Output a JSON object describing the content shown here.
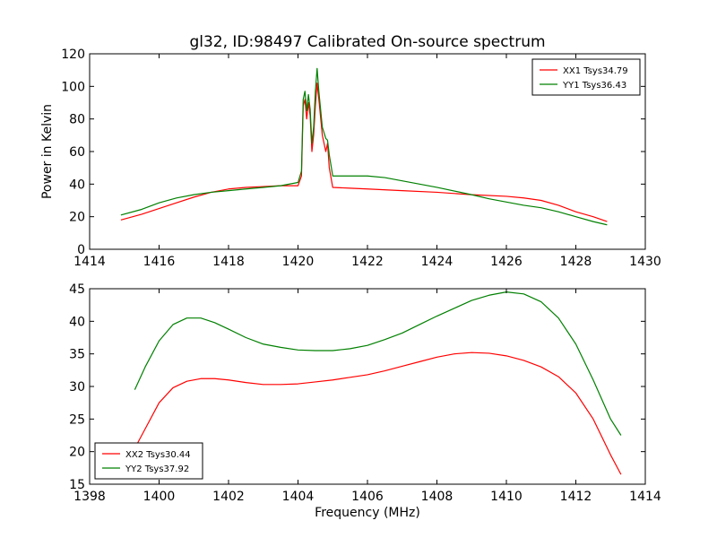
{
  "chart_data": [
    {
      "type": "line",
      "title": "gl32, ID:98497 Calibrated On-source spectrum",
      "xlabel": "",
      "ylabel": "Power in Kelvin",
      "xlim": [
        1414,
        1430
      ],
      "ylim": [
        0,
        120
      ],
      "xticks": [
        "1414",
        "1416",
        "1418",
        "1420",
        "1422",
        "1424",
        "1426",
        "1428",
        "1430"
      ],
      "yticks": [
        "0",
        "20",
        "40",
        "60",
        "80",
        "100",
        "120"
      ],
      "legend_position": "top-right",
      "series": [
        {
          "name": "XX1 Tsys34.79",
          "color": "#ff0000",
          "points": [
            [
              1414.9,
              18
            ],
            [
              1415.5,
              21.5
            ],
            [
              1416,
              25
            ],
            [
              1416.5,
              28.5
            ],
            [
              1417,
              32
            ],
            [
              1417.5,
              35
            ],
            [
              1418,
              37
            ],
            [
              1418.5,
              38
            ],
            [
              1419,
              38.5
            ],
            [
              1419.5,
              39
            ],
            [
              1420,
              39
            ],
            [
              1420.1,
              45
            ],
            [
              1420.15,
              88
            ],
            [
              1420.2,
              92
            ],
            [
              1420.25,
              80
            ],
            [
              1420.3,
              90
            ],
            [
              1420.35,
              82
            ],
            [
              1420.4,
              60
            ],
            [
              1420.45,
              70
            ],
            [
              1420.5,
              88
            ],
            [
              1420.55,
              102
            ],
            [
              1420.6,
              92
            ],
            [
              1420.7,
              70
            ],
            [
              1420.8,
              60
            ],
            [
              1420.85,
              65
            ],
            [
              1420.9,
              50
            ],
            [
              1421,
              38
            ],
            [
              1421.5,
              37.5
            ],
            [
              1422,
              37
            ],
            [
              1423,
              36
            ],
            [
              1424,
              35
            ],
            [
              1425,
              33.5
            ],
            [
              1426,
              32.5
            ],
            [
              1426.5,
              31.5
            ],
            [
              1427,
              30
            ],
            [
              1427.5,
              27
            ],
            [
              1428,
              23
            ],
            [
              1428.5,
              20
            ],
            [
              1428.9,
              17
            ]
          ]
        },
        {
          "name": "YY1 Tsys36.43",
          "color": "#008000",
          "points": [
            [
              1414.9,
              21
            ],
            [
              1415.5,
              24.5
            ],
            [
              1416,
              28.5
            ],
            [
              1416.5,
              31.5
            ],
            [
              1417,
              33.5
            ],
            [
              1417.5,
              35
            ],
            [
              1418,
              36
            ],
            [
              1418.5,
              37
            ],
            [
              1419,
              38
            ],
            [
              1419.5,
              39
            ],
            [
              1420,
              41
            ],
            [
              1420.1,
              48
            ],
            [
              1420.15,
              92
            ],
            [
              1420.2,
              97
            ],
            [
              1420.25,
              85
            ],
            [
              1420.3,
              95
            ],
            [
              1420.35,
              86
            ],
            [
              1420.4,
              65
            ],
            [
              1420.45,
              75
            ],
            [
              1420.5,
              97
            ],
            [
              1420.55,
              111
            ],
            [
              1420.6,
              97
            ],
            [
              1420.7,
              75
            ],
            [
              1420.8,
              68
            ],
            [
              1420.85,
              67
            ],
            [
              1420.9,
              58
            ],
            [
              1421,
              45
            ],
            [
              1421.5,
              45
            ],
            [
              1422,
              45
            ],
            [
              1422.5,
              44
            ],
            [
              1423,
              42
            ],
            [
              1424,
              38
            ],
            [
              1425,
              33.5
            ],
            [
              1425.5,
              31
            ],
            [
              1426,
              29
            ],
            [
              1426.5,
              27
            ],
            [
              1427,
              25.5
            ],
            [
              1427.5,
              23
            ],
            [
              1428,
              20
            ],
            [
              1428.5,
              17
            ],
            [
              1428.9,
              15
            ]
          ]
        }
      ]
    },
    {
      "type": "line",
      "title": "",
      "xlabel": "Frequency (MHz)",
      "ylabel": "",
      "xlim": [
        1398,
        1414
      ],
      "ylim": [
        15,
        45
      ],
      "xticks": [
        "1398",
        "1400",
        "1402",
        "1404",
        "1406",
        "1408",
        "1410",
        "1412",
        "1414"
      ],
      "yticks": [
        "15",
        "20",
        "25",
        "30",
        "35",
        "40",
        "45"
      ],
      "legend_position": "bottom-left",
      "series": [
        {
          "name": "XX2 Tsys30.44",
          "color": "#ff0000",
          "points": [
            [
              1399.3,
              20.5
            ],
            [
              1399.6,
              23.5
            ],
            [
              1400,
              27.5
            ],
            [
              1400.4,
              29.8
            ],
            [
              1400.8,
              30.8
            ],
            [
              1401.2,
              31.2
            ],
            [
              1401.6,
              31.2
            ],
            [
              1402,
              31
            ],
            [
              1402.5,
              30.6
            ],
            [
              1403,
              30.3
            ],
            [
              1403.5,
              30.3
            ],
            [
              1404,
              30.4
            ],
            [
              1404.5,
              30.7
            ],
            [
              1405,
              31
            ],
            [
              1405.5,
              31.4
            ],
            [
              1406,
              31.8
            ],
            [
              1406.5,
              32.4
            ],
            [
              1407,
              33.1
            ],
            [
              1407.5,
              33.8
            ],
            [
              1408,
              34.5
            ],
            [
              1408.5,
              35
            ],
            [
              1409,
              35.2
            ],
            [
              1409.5,
              35.1
            ],
            [
              1410,
              34.7
            ],
            [
              1410.5,
              34
            ],
            [
              1411,
              33
            ],
            [
              1411.5,
              31.5
            ],
            [
              1412,
              29
            ],
            [
              1412.5,
              25
            ],
            [
              1413,
              19.5
            ],
            [
              1413.3,
              16.5
            ]
          ]
        },
        {
          "name": "YY2 Tsys37.92",
          "color": "#008000",
          "points": [
            [
              1399.3,
              29.5
            ],
            [
              1399.6,
              33
            ],
            [
              1400,
              37
            ],
            [
              1400.4,
              39.5
            ],
            [
              1400.8,
              40.5
            ],
            [
              1401.2,
              40.5
            ],
            [
              1401.6,
              39.8
            ],
            [
              1402,
              38.8
            ],
            [
              1402.5,
              37.5
            ],
            [
              1403,
              36.5
            ],
            [
              1403.5,
              36
            ],
            [
              1404,
              35.6
            ],
            [
              1404.5,
              35.5
            ],
            [
              1405,
              35.5
            ],
            [
              1405.5,
              35.8
            ],
            [
              1406,
              36.3
            ],
            [
              1406.5,
              37.2
            ],
            [
              1407,
              38.2
            ],
            [
              1407.5,
              39.5
            ],
            [
              1408,
              40.8
            ],
            [
              1408.5,
              42
            ],
            [
              1409,
              43.2
            ],
            [
              1409.5,
              44
            ],
            [
              1410,
              44.5
            ],
            [
              1410.5,
              44.2
            ],
            [
              1411,
              43
            ],
            [
              1411.5,
              40.5
            ],
            [
              1412,
              36.5
            ],
            [
              1412.5,
              31
            ],
            [
              1413,
              25
            ],
            [
              1413.3,
              22.5
            ]
          ]
        }
      ]
    }
  ]
}
